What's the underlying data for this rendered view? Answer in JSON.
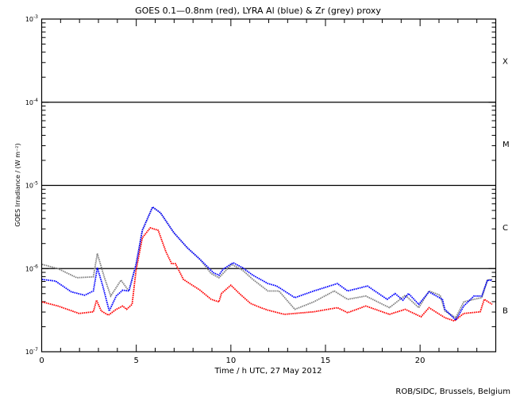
{
  "chart_data": {
    "type": "line",
    "title": "GOES 0.1—0.8nm (red), LYRA Al (blue) & Zr (grey) proxy",
    "xlabel": "Time / h UTC, 27 May 2012",
    "ylabel": "GOES Irradiance / (W m⁻²)",
    "xlim": [
      0,
      24
    ],
    "ylim": [
      1e-07,
      0.001
    ],
    "yscale": "log",
    "x_ticks": [
      "0",
      "5",
      "10",
      "15",
      "20"
    ],
    "y_ticks": [
      {
        "base": "10",
        "exp": "-3"
      },
      {
        "base": "10",
        "exp": "-4"
      },
      {
        "base": "10",
        "exp": "-5"
      },
      {
        "base": "10",
        "exp": "-6"
      },
      {
        "base": "10",
        "exp": "-7"
      }
    ],
    "flare_classes": [
      {
        "label": "X",
        "lower_log10": -4
      },
      {
        "label": "M",
        "lower_log10": -5
      },
      {
        "label": "C",
        "lower_log10": -6
      },
      {
        "label": "B",
        "lower_log10": -7
      }
    ],
    "series": [
      {
        "name": "GOES 0.1-0.8nm",
        "color": "#ff0000",
        "values_are": "log10 W/m2",
        "t": [
          0.02,
          0.86,
          1.98,
          2.73,
          2.9,
          3.15,
          3.53,
          3.94,
          4.28,
          4.49,
          4.78,
          4.99,
          5.32,
          5.74,
          6.16,
          6.57,
          6.87,
          7.07,
          7.49,
          7.83,
          8.37,
          8.96,
          9.37,
          9.5,
          10.0,
          10.45,
          11.04,
          11.58,
          11.96,
          12.83,
          14.38,
          15.63,
          16.17,
          17.13,
          18.38,
          19.22,
          20.05,
          20.47,
          21.31,
          21.81,
          22.31,
          23.18,
          23.39,
          23.81
        ],
        "v": [
          -6.4,
          -6.45,
          -6.54,
          -6.52,
          -6.38,
          -6.51,
          -6.56,
          -6.49,
          -6.45,
          -6.49,
          -6.43,
          -6.02,
          -5.63,
          -5.51,
          -5.54,
          -5.8,
          -5.94,
          -5.94,
          -6.13,
          -6.18,
          -6.26,
          -6.37,
          -6.4,
          -6.3,
          -6.2,
          -6.3,
          -6.42,
          -6.47,
          -6.5,
          -6.55,
          -6.52,
          -6.47,
          -6.53,
          -6.45,
          -6.55,
          -6.49,
          -6.58,
          -6.47,
          -6.59,
          -6.63,
          -6.54,
          -6.52,
          -6.37,
          -6.43
        ]
      },
      {
        "name": "LYRA Zr proxy",
        "color": "#808080",
        "values_are": "log10 W/m2",
        "t": [
          0.02,
          0.86,
          1.86,
          2.73,
          2.94,
          3.32,
          3.65,
          4.19,
          4.61,
          4.99,
          5.32,
          5.86,
          6.28,
          6.99,
          7.7,
          8.37,
          8.96,
          9.37,
          10.04,
          10.62,
          11.16,
          11.96,
          12.54,
          13.38,
          14.38,
          15.46,
          16.17,
          17.13,
          18.38,
          19.22,
          19.93,
          20.47,
          21.06,
          21.31,
          21.89,
          22.31,
          22.85,
          23.26,
          23.56,
          23.81
        ],
        "v": [
          -5.95,
          -6.0,
          -6.11,
          -6.1,
          -5.82,
          -6.11,
          -6.33,
          -6.14,
          -6.27,
          -5.95,
          -5.54,
          -5.26,
          -5.33,
          -5.57,
          -5.75,
          -5.89,
          -6.06,
          -6.11,
          -5.95,
          -6.02,
          -6.13,
          -6.27,
          -6.27,
          -6.49,
          -6.4,
          -6.27,
          -6.37,
          -6.33,
          -6.47,
          -6.32,
          -6.47,
          -6.27,
          -6.32,
          -6.51,
          -6.59,
          -6.4,
          -6.37,
          -6.35,
          -6.14,
          -6.13
        ]
      },
      {
        "name": "LYRA Al proxy",
        "color": "#0000ff",
        "values_are": "log10 W/m2",
        "t": [
          0.02,
          0.73,
          1.57,
          2.27,
          2.73,
          2.94,
          3.23,
          3.57,
          3.94,
          4.28,
          4.61,
          4.99,
          5.32,
          5.86,
          6.28,
          6.99,
          7.7,
          8.37,
          9.08,
          9.37,
          9.58,
          10.12,
          10.62,
          11.16,
          11.96,
          12.42,
          13.38,
          14.38,
          15.63,
          16.17,
          17.22,
          18.26,
          18.68,
          19.09,
          19.39,
          19.93,
          20.47,
          21.18,
          21.31,
          21.89,
          22.31,
          22.85,
          23.26,
          23.56,
          23.81
        ],
        "v": [
          -6.13,
          -6.15,
          -6.28,
          -6.32,
          -6.27,
          -5.99,
          -6.21,
          -6.51,
          -6.33,
          -6.26,
          -6.27,
          -5.95,
          -5.54,
          -5.26,
          -5.33,
          -5.57,
          -5.75,
          -5.89,
          -6.05,
          -6.08,
          -6.01,
          -5.93,
          -5.99,
          -6.08,
          -6.18,
          -6.21,
          -6.35,
          -6.27,
          -6.18,
          -6.27,
          -6.21,
          -6.37,
          -6.3,
          -6.38,
          -6.3,
          -6.43,
          -6.28,
          -6.37,
          -6.49,
          -6.62,
          -6.45,
          -6.33,
          -6.33,
          -6.14,
          -6.14
        ]
      }
    ]
  },
  "footer": {
    "credit": "ROB/SIDC, Brussels, Belgium"
  }
}
